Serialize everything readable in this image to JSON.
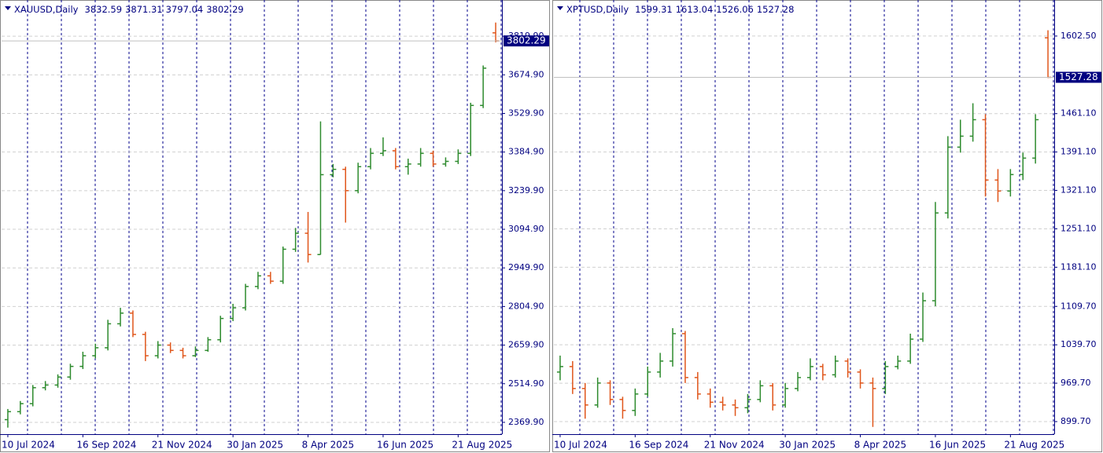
{
  "chart_data": [
    {
      "type": "ohlc",
      "symbol": "XAUUSD,Daily",
      "up_color": "#2e8b2e",
      "down_color": "#e0561b",
      "grid": true,
      "categories": [
        "10 Jul 2024",
        null,
        null,
        null,
        null,
        null,
        "16 Sep 2024",
        null,
        null,
        null,
        null,
        null,
        "21 Nov 2024",
        null,
        null,
        null,
        null,
        null,
        "30 Jan 2025",
        null,
        null,
        null,
        null,
        null,
        "8 Apr 2025",
        null,
        null,
        null,
        null,
        null,
        "16 Jun 2025",
        null,
        null,
        null,
        null,
        null,
        "21 Aug 2025",
        null,
        null,
        null
      ],
      "open": [
        2380,
        2410,
        2440,
        2500,
        2510,
        2540,
        2580,
        2620,
        2650,
        2740,
        2780,
        2700,
        2620,
        2660,
        2640,
        2620,
        2640,
        2680,
        2760,
        2800,
        2880,
        2920,
        2900,
        3020,
        3080,
        3000,
        3300,
        3320,
        3240,
        3330,
        3380,
        3390,
        3330,
        3340,
        3380,
        3340,
        3350,
        3380,
        3560,
        3832.59
      ],
      "high": [
        2420,
        2450,
        2510,
        2525,
        2550,
        2590,
        2635,
        2665,
        2755,
        2800,
        2790,
        2710,
        2675,
        2670,
        2650,
        2655,
        2690,
        2770,
        2815,
        2890,
        2935,
        2935,
        3030,
        3100,
        3160,
        3500,
        3340,
        3330,
        3345,
        3400,
        3440,
        3400,
        3360,
        3400,
        3390,
        3365,
        3395,
        3570,
        3710,
        3871.31
      ],
      "low": [
        2350,
        2400,
        2430,
        2490,
        2500,
        2530,
        2570,
        2610,
        2640,
        2730,
        2690,
        2600,
        2610,
        2630,
        2610,
        2615,
        2635,
        2670,
        2750,
        2790,
        2870,
        2890,
        2890,
        3010,
        2970,
        3000,
        3290,
        3120,
        3230,
        3320,
        3370,
        3320,
        3300,
        3330,
        3330,
        3330,
        3340,
        3370,
        3550,
        3797.04
      ],
      "close": [
        2410,
        2440,
        2500,
        2510,
        2540,
        2580,
        2620,
        2650,
        2740,
        2780,
        2700,
        2620,
        2660,
        2640,
        2620,
        2640,
        2680,
        2760,
        2800,
        2880,
        2920,
        2900,
        3020,
        3080,
        3000,
        3300,
        3320,
        3240,
        3330,
        3380,
        3390,
        3330,
        3340,
        3380,
        3340,
        3350,
        3380,
        3560,
        3700,
        3802.29
      ],
      "ylim": [
        2325.5,
        3947.1
      ],
      "yticks": [
        {
          "value": 2369.9,
          "label": "2369.90"
        },
        {
          "value": 2514.9,
          "label": "2514.90"
        },
        {
          "value": 2659.9,
          "label": "2659.90"
        },
        {
          "value": 2804.9,
          "label": "2804.90"
        },
        {
          "value": 2949.9,
          "label": "2949.90"
        },
        {
          "value": 3094.9,
          "label": "3094.90"
        },
        {
          "value": 3239.9,
          "label": "3239.90"
        },
        {
          "value": 3384.9,
          "label": "3384.90"
        },
        {
          "value": 3529.9,
          "label": "3529.90"
        },
        {
          "value": 3674.9,
          "label": "3674.90"
        },
        {
          "value": 3819.9,
          "label": "3819.90"
        }
      ]
    },
    {
      "type": "ohlc",
      "symbol": "XPTUSD,Daily",
      "up_color": "#2e8b2e",
      "down_color": "#e0561b",
      "grid": true,
      "categories": [
        "10 Jul 2024",
        null,
        null,
        null,
        null,
        null,
        "16 Sep 2024",
        null,
        null,
        null,
        null,
        null,
        "21 Nov 2024",
        null,
        null,
        null,
        null,
        null,
        "30 Jan 2025",
        null,
        null,
        null,
        null,
        null,
        "8 Apr 2025",
        null,
        null,
        null,
        null,
        null,
        "16 Jun 2025",
        null,
        null,
        null,
        null,
        null,
        "21 Aug 2025",
        null,
        null,
        null
      ],
      "open": [
        990,
        1000,
        960,
        930,
        970,
        940,
        920,
        950,
        990,
        1010,
        1060,
        980,
        950,
        935,
        930,
        925,
        940,
        965,
        930,
        960,
        980,
        1000,
        985,
        1010,
        990,
        970,
        960,
        1000,
        1010,
        1050,
        1120,
        1280,
        1400,
        1420,
        1450,
        1340,
        1320,
        1350,
        1380,
        1599.31
      ],
      "high": [
        1020,
        1010,
        970,
        980,
        975,
        945,
        960,
        1000,
        1025,
        1070,
        1065,
        990,
        960,
        945,
        940,
        950,
        975,
        970,
        970,
        990,
        1015,
        1005,
        1020,
        1015,
        995,
        980,
        1010,
        1020,
        1060,
        1135,
        1300,
        1420,
        1450,
        1480,
        1460,
        1360,
        1360,
        1390,
        1460,
        1613.04
      ],
      "low": [
        975,
        950,
        905,
        925,
        930,
        905,
        910,
        945,
        980,
        1000,
        970,
        940,
        925,
        920,
        910,
        915,
        935,
        920,
        925,
        955,
        975,
        975,
        980,
        980,
        960,
        890,
        950,
        995,
        1005,
        1045,
        1110,
        1270,
        1390,
        1410,
        1310,
        1300,
        1310,
        1340,
        1370,
        1526.06
      ],
      "close": [
        1000,
        960,
        930,
        970,
        940,
        920,
        950,
        990,
        1010,
        1060,
        980,
        950,
        935,
        930,
        925,
        940,
        965,
        930,
        960,
        980,
        1000,
        985,
        1010,
        990,
        970,
        960,
        1000,
        1010,
        1050,
        1120,
        1280,
        1400,
        1420,
        1450,
        1340,
        1320,
        1350,
        1380,
        1450,
        1527.28
      ],
      "ylim": [
        876.8,
        1663.9
      ],
      "yticks": [
        {
          "value": 899.7,
          "label": "899.70"
        },
        {
          "value": 969.7,
          "label": "969.70"
        },
        {
          "value": 1039.7,
          "label": "1039.70"
        },
        {
          "value": 1109.7,
          "label": "1109.70"
        },
        {
          "value": 1181.1,
          "label": "1181.10"
        },
        {
          "value": 1251.1,
          "label": "1251.10"
        },
        {
          "value": 1321.1,
          "label": "1321.10"
        },
        {
          "value": 1391.1,
          "label": "1391.10"
        },
        {
          "value": 1461.1,
          "label": "1461.10"
        },
        {
          "value": 1602.5,
          "label": "1602.50"
        }
      ]
    }
  ]
}
